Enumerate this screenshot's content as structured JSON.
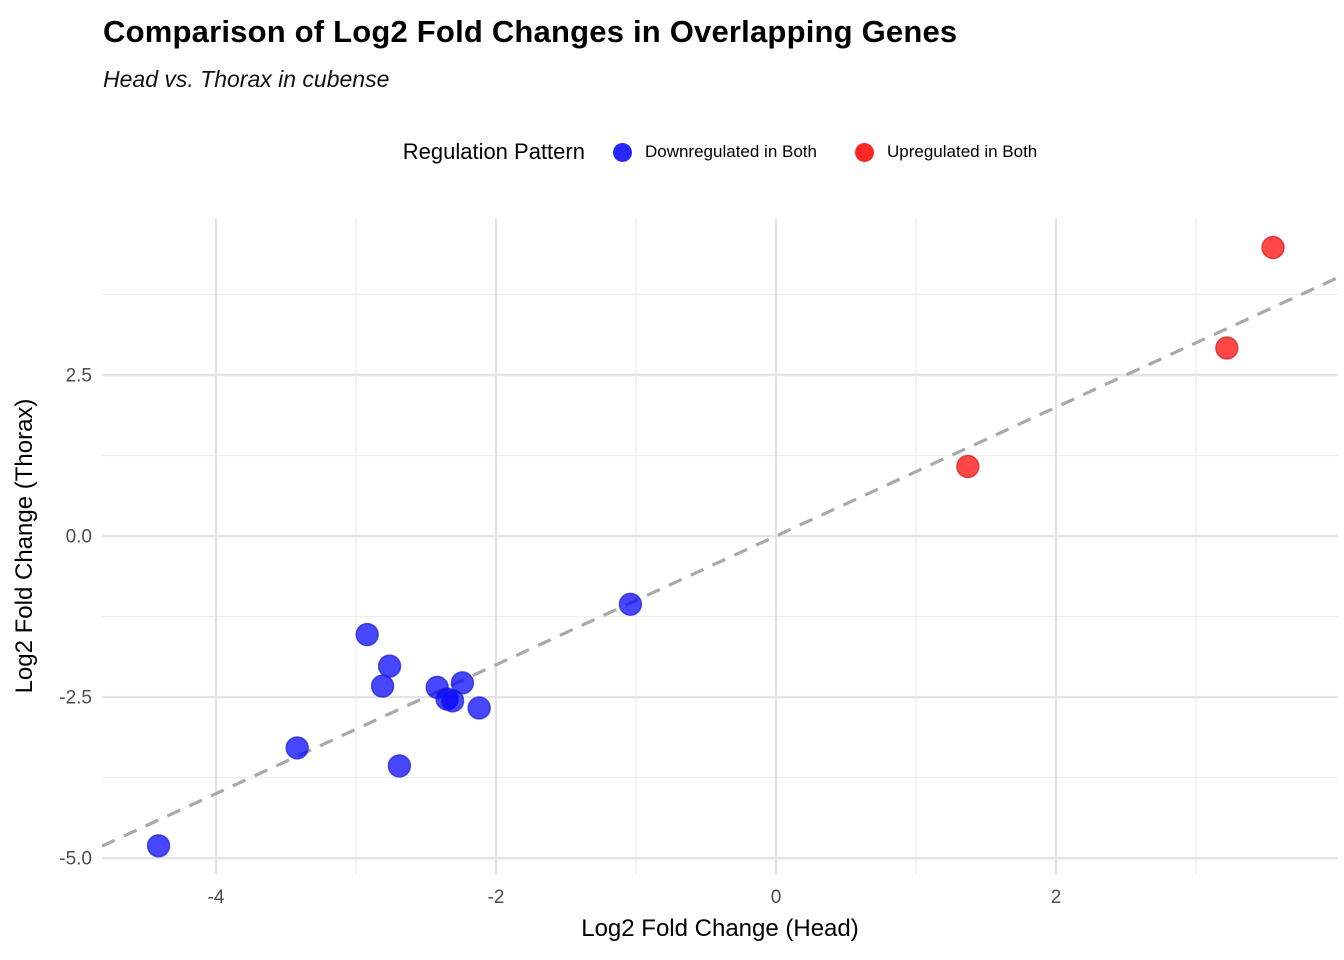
{
  "header": {
    "title": "Comparison of Log2 Fold Changes in Overlapping Genes",
    "subtitle": "Head vs. Thorax in cubense"
  },
  "legend": {
    "title": "Regulation Pattern",
    "items": [
      {
        "label": "Downregulated in Both",
        "color": "#0000FF"
      },
      {
        "label": "Upregulated in Both",
        "color": "#FF0000"
      }
    ]
  },
  "chart_data": {
    "type": "scatter",
    "title": "Comparison of Log2 Fold Changes in Overlapping Genes",
    "subtitle": "Head vs. Thorax in cubense",
    "xlabel": "Log2 Fold Change (Head)",
    "ylabel": "Log2 Fold Change (Thorax)",
    "xlim": [
      -4.814,
      4.014
    ],
    "ylim": [
      -5.248,
      4.938
    ],
    "grid": "on",
    "legend_position": "top",
    "x_major_ticks": [
      {
        "value": -4,
        "label": "-4"
      },
      {
        "value": -2,
        "label": "-2"
      },
      {
        "value": 0,
        "label": "0"
      },
      {
        "value": 2,
        "label": "2"
      }
    ],
    "y_major_ticks": [
      {
        "value": 2.5,
        "label": "2.5"
      },
      {
        "value": 0,
        "label": "0.0"
      },
      {
        "value": -2.5,
        "label": "-2.5"
      },
      {
        "value": -5,
        "label": "-5.0"
      }
    ],
    "x_minor_ticks": [
      -3,
      -1,
      1,
      3
    ],
    "y_minor_ticks": [
      3.75,
      1.25,
      -1.25,
      -3.75
    ],
    "reference_line": {
      "type": "identity",
      "equation": "y = x",
      "style": "dashed",
      "color": "#a9a9a9"
    },
    "series": [
      {
        "name": "Downregulated in Both",
        "color": "#0000FF",
        "stroke": "#2222CC",
        "points": [
          [
            -4.41,
            -4.81
          ],
          [
            -3.42,
            -3.29
          ],
          [
            -2.92,
            -1.53
          ],
          [
            -2.81,
            -2.33
          ],
          [
            -2.76,
            -2.02
          ],
          [
            -2.69,
            -3.57
          ],
          [
            -2.42,
            -2.35
          ],
          [
            -2.35,
            -2.53
          ],
          [
            -2.31,
            -2.56
          ],
          [
            -2.24,
            -2.28
          ],
          [
            -2.12,
            -2.67
          ],
          [
            -1.04,
            -1.06
          ]
        ]
      },
      {
        "name": "Upregulated in Both",
        "color": "#FF0000",
        "stroke": "#CC2222",
        "points": [
          [
            1.37,
            1.08
          ],
          [
            3.22,
            2.92
          ],
          [
            3.55,
            4.48
          ]
        ]
      }
    ],
    "colors": {
      "grid_major": "#e3e3e3",
      "grid_minor": "#efefef",
      "tick_text": "#4d4d4d",
      "background": "#ffffff"
    }
  }
}
